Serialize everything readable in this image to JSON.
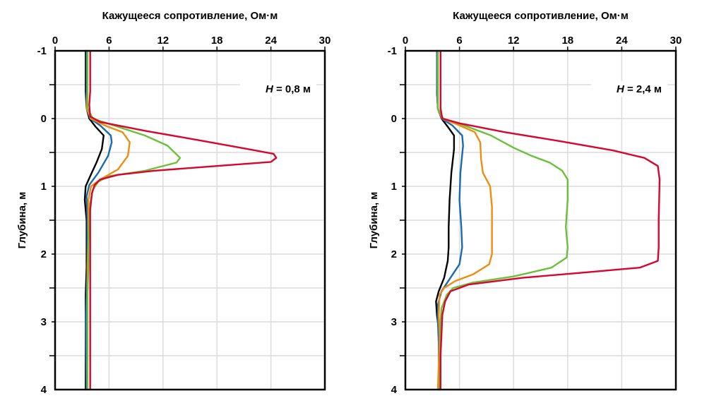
{
  "chart_data": [
    {
      "type": "line",
      "panel": "left",
      "xlabel": "Кажущееся сопротивление,  Ом·м",
      "ylabel": "Глубина,  м",
      "xlim": [
        0,
        30
      ],
      "ylim": [
        -1,
        4
      ],
      "x_ticks": [
        "0",
        "6",
        "12",
        "18",
        "24",
        "30"
      ],
      "x_tick_values": [
        0,
        6,
        12,
        18,
        24,
        30
      ],
      "y_ticks": [
        "-1",
        "0",
        "1",
        "2",
        "3",
        "4"
      ],
      "y_tick_values": [
        -1,
        0,
        1,
        2,
        3,
        4
      ],
      "y_inverted": true,
      "grid": true,
      "annotation_prefix": "H",
      "annotation": " = 0,8 м",
      "series": [
        {
          "name": "black",
          "color": "#000000",
          "points": [
            [
              3.4,
              -1
            ],
            [
              3.4,
              -0.4
            ],
            [
              3.5,
              -0.15
            ],
            [
              3.8,
              0
            ],
            [
              4.5,
              0.12
            ],
            [
              5.4,
              0.25
            ],
            [
              5.2,
              0.45
            ],
            [
              4.6,
              0.65
            ],
            [
              3.9,
              0.85
            ],
            [
              3.4,
              1.0
            ],
            [
              3.3,
              1.2
            ],
            [
              3.5,
              1.5
            ],
            [
              3.5,
              1.8
            ],
            [
              3.5,
              2.2
            ],
            [
              3.4,
              2.6
            ],
            [
              3.4,
              3
            ],
            [
              3.4,
              4
            ]
          ]
        },
        {
          "name": "blue",
          "color": "#1a6aad",
          "points": [
            [
              3.5,
              -1
            ],
            [
              3.5,
              -0.4
            ],
            [
              3.5,
              -0.15
            ],
            [
              3.9,
              0
            ],
            [
              5.0,
              0.1
            ],
            [
              6.2,
              0.25
            ],
            [
              6.3,
              0.35
            ],
            [
              5.9,
              0.55
            ],
            [
              4.8,
              0.8
            ],
            [
              3.8,
              0.98
            ],
            [
              3.5,
              1.15
            ],
            [
              3.6,
              1.5
            ],
            [
              3.6,
              1.8
            ],
            [
              3.6,
              2.2
            ],
            [
              3.5,
              2.6
            ],
            [
              3.4,
              3
            ],
            [
              3.5,
              4
            ]
          ]
        },
        {
          "name": "orange",
          "color": "#ef8c12",
          "points": [
            [
              3.6,
              -1
            ],
            [
              3.6,
              -0.4
            ],
            [
              3.5,
              -0.15
            ],
            [
              4.0,
              0
            ],
            [
              5.5,
              0.1
            ],
            [
              7.5,
              0.2
            ],
            [
              8.3,
              0.35
            ],
            [
              8.1,
              0.55
            ],
            [
              7.0,
              0.75
            ],
            [
              5.0,
              0.9
            ],
            [
              4.0,
              1.0
            ],
            [
              3.7,
              1.2
            ],
            [
              3.7,
              1.5
            ],
            [
              3.7,
              1.8
            ],
            [
              3.6,
              2.2
            ],
            [
              3.6,
              2.6
            ],
            [
              3.6,
              3
            ],
            [
              3.6,
              4
            ]
          ]
        },
        {
          "name": "green",
          "color": "#6cbf3a",
          "points": [
            [
              3.6,
              -1
            ],
            [
              3.6,
              -0.4
            ],
            [
              3.6,
              -0.15
            ],
            [
              4.2,
              0
            ],
            [
              6.5,
              0.1
            ],
            [
              10,
              0.25
            ],
            [
              12.5,
              0.4
            ],
            [
              13.9,
              0.58
            ],
            [
              13.5,
              0.65
            ],
            [
              10,
              0.77
            ],
            [
              6,
              0.85
            ],
            [
              4.8,
              0.93
            ],
            [
              4.2,
              1.05
            ],
            [
              3.9,
              1.25
            ],
            [
              3.8,
              1.45
            ],
            [
              3.7,
              1.8
            ],
            [
              3.7,
              2.2
            ],
            [
              3.6,
              2.6
            ],
            [
              3.6,
              3
            ],
            [
              3.6,
              4
            ]
          ]
        },
        {
          "name": "red",
          "color": "#d9052c",
          "points": [
            [
              3.9,
              -1
            ],
            [
              3.9,
              -0.4
            ],
            [
              3.8,
              -0.2
            ],
            [
              3.9,
              -0.03
            ],
            [
              5,
              0.05
            ],
            [
              10,
              0.18
            ],
            [
              16,
              0.32
            ],
            [
              21,
              0.44
            ],
            [
              24.3,
              0.52
            ],
            [
              24.6,
              0.58
            ],
            [
              24.0,
              0.64
            ],
            [
              18,
              0.7
            ],
            [
              11,
              0.77
            ],
            [
              7,
              0.83
            ],
            [
              5,
              0.9
            ],
            [
              4.4,
              0.98
            ],
            [
              4.1,
              1.1
            ],
            [
              3.9,
              1.35
            ],
            [
              3.9,
              1.6
            ],
            [
              3.9,
              2
            ],
            [
              3.9,
              3
            ],
            [
              3.9,
              4
            ]
          ]
        }
      ]
    },
    {
      "type": "line",
      "panel": "right",
      "xlabel": "Кажущееся сопротивление,  Ом·м",
      "ylabel": "Глубина,  м",
      "xlim": [
        0,
        30
      ],
      "ylim": [
        -1,
        4
      ],
      "x_ticks": [
        "0",
        "6",
        "12",
        "18",
        "24",
        "30"
      ],
      "x_tick_values": [
        0,
        6,
        12,
        18,
        24,
        30
      ],
      "y_ticks": [
        "-1",
        "0",
        "1",
        "2",
        "3",
        "4"
      ],
      "y_tick_values": [
        -1,
        0,
        1,
        2,
        3,
        4
      ],
      "y_inverted": true,
      "grid": true,
      "annotation_prefix": "H",
      "annotation": " = 2,4 м",
      "series": [
        {
          "name": "black",
          "color": "#000000",
          "points": [
            [
              3.5,
              -1
            ],
            [
              3.5,
              -0.4
            ],
            [
              3.6,
              -0.15
            ],
            [
              4.0,
              0
            ],
            [
              4.7,
              0.12
            ],
            [
              5.4,
              0.25
            ],
            [
              5.4,
              0.45
            ],
            [
              5.1,
              0.8
            ],
            [
              4.9,
              1.2
            ],
            [
              4.8,
              1.6
            ],
            [
              4.8,
              1.9
            ],
            [
              4.7,
              2.1
            ],
            [
              4.3,
              2.35
            ],
            [
              3.7,
              2.55
            ],
            [
              3.4,
              2.7
            ],
            [
              3.5,
              2.9
            ],
            [
              3.7,
              3.1
            ],
            [
              3.7,
              4
            ]
          ]
        },
        {
          "name": "blue",
          "color": "#1a6aad",
          "points": [
            [
              3.5,
              -1
            ],
            [
              3.5,
              -0.4
            ],
            [
              3.6,
              -0.15
            ],
            [
              4.0,
              0
            ],
            [
              5.2,
              0.1
            ],
            [
              6.3,
              0.25
            ],
            [
              6.4,
              0.4
            ],
            [
              6.1,
              0.8
            ],
            [
              6.0,
              1.2
            ],
            [
              6.2,
              1.6
            ],
            [
              6.3,
              1.9
            ],
            [
              6.0,
              2.15
            ],
            [
              5.0,
              2.35
            ],
            [
              4.0,
              2.55
            ],
            [
              3.6,
              2.75
            ],
            [
              3.6,
              3
            ],
            [
              3.7,
              3.3
            ],
            [
              3.7,
              4
            ]
          ]
        },
        {
          "name": "orange",
          "color": "#ef8c12",
          "points": [
            [
              3.6,
              -1
            ],
            [
              3.6,
              -0.4
            ],
            [
              3.6,
              -0.15
            ],
            [
              4.1,
              0
            ],
            [
              6.0,
              0.1
            ],
            [
              7.7,
              0.2
            ],
            [
              8.3,
              0.35
            ],
            [
              8.4,
              0.6
            ],
            [
              8.6,
              0.8
            ],
            [
              9.4,
              1.0
            ],
            [
              9.6,
              1.3
            ],
            [
              9.6,
              1.7
            ],
            [
              9.6,
              2.0
            ],
            [
              9.3,
              2.15
            ],
            [
              7.5,
              2.3
            ],
            [
              5.5,
              2.4
            ],
            [
              4.3,
              2.5
            ],
            [
              3.8,
              2.6
            ],
            [
              3.7,
              2.9
            ],
            [
              3.8,
              3.2
            ],
            [
              3.6,
              4
            ]
          ]
        },
        {
          "name": "green",
          "color": "#6cbf3a",
          "points": [
            [
              3.6,
              -1
            ],
            [
              3.6,
              -0.4
            ],
            [
              3.6,
              -0.15
            ],
            [
              4.2,
              0
            ],
            [
              6.5,
              0.1
            ],
            [
              9.5,
              0.25
            ],
            [
              12,
              0.43
            ],
            [
              14,
              0.55
            ],
            [
              16,
              0.65
            ],
            [
              17.4,
              0.77
            ],
            [
              18.0,
              0.9
            ],
            [
              18.0,
              1.2
            ],
            [
              17.8,
              1.6
            ],
            [
              18.0,
              1.9
            ],
            [
              17.9,
              2.05
            ],
            [
              16.2,
              2.2
            ],
            [
              12,
              2.33
            ],
            [
              7.5,
              2.42
            ],
            [
              5.3,
              2.5
            ],
            [
              4.6,
              2.6
            ],
            [
              4.0,
              2.8
            ],
            [
              3.9,
              3.0
            ],
            [
              3.9,
              3.3
            ],
            [
              3.8,
              4
            ]
          ]
        },
        {
          "name": "red",
          "color": "#d9052c",
          "points": [
            [
              3.9,
              -1
            ],
            [
              3.9,
              -0.4
            ],
            [
              3.9,
              -0.15
            ],
            [
              4.1,
              0
            ],
            [
              6,
              0.07
            ],
            [
              11,
              0.2
            ],
            [
              17,
              0.33
            ],
            [
              23,
              0.47
            ],
            [
              26.5,
              0.58
            ],
            [
              28.0,
              0.7
            ],
            [
              28.2,
              0.9
            ],
            [
              28.1,
              1.5
            ],
            [
              28.1,
              1.9
            ],
            [
              28.0,
              2.1
            ],
            [
              26,
              2.2
            ],
            [
              20,
              2.27
            ],
            [
              13,
              2.35
            ],
            [
              7,
              2.45
            ],
            [
              5,
              2.55
            ],
            [
              4.4,
              2.7
            ],
            [
              4.1,
              2.9
            ],
            [
              4.0,
              3.2
            ],
            [
              3.9,
              3.5
            ],
            [
              3.9,
              4
            ]
          ]
        }
      ]
    }
  ]
}
